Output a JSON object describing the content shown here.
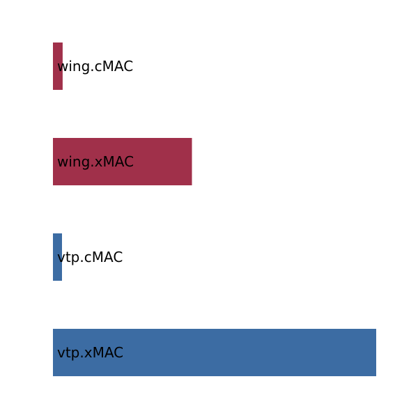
{
  "chart_data": {
    "type": "bar",
    "orientation": "horizontal",
    "categories": [
      "wing.cMAC",
      "wing.xMAC",
      "vtp.cMAC",
      "vtp.xMAC"
    ],
    "values": [
      0.3,
      4.3,
      0.28,
      10.0
    ],
    "colors": [
      "#a0304a",
      "#a0304a",
      "#3c6ca3",
      "#3c6ca3"
    ],
    "title": "",
    "xlabel": "",
    "ylabel": "",
    "xlim": [
      0,
      10
    ],
    "grid": false,
    "legend": "none"
  }
}
